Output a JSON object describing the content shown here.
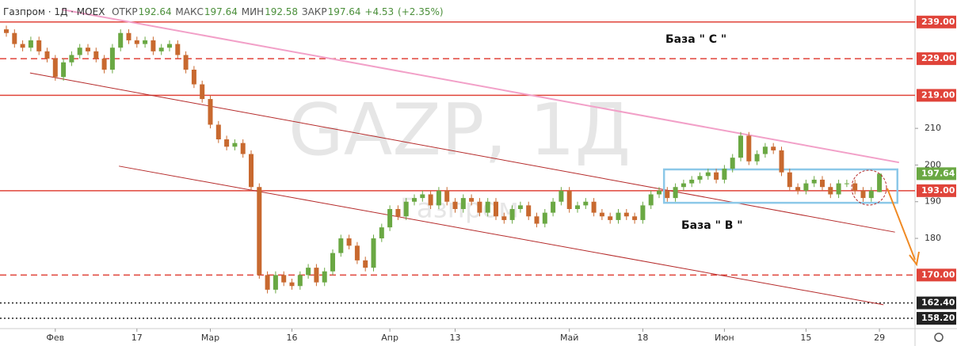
{
  "chart_data": {
    "type": "candlestick",
    "header": {
      "title": "Газпром · 1Д · MOEX",
      "open_label": "ОТКР",
      "open": 192.64,
      "high_label": "МАКС",
      "high": 197.64,
      "low_label": "МИН",
      "low": 192.58,
      "close_label": "ЗАКР",
      "close": 197.64,
      "change": "+4.53",
      "change_pct": "(+2.35%)"
    },
    "watermark": "GAZP, 1Д",
    "watermark_name": "Газпром",
    "annotations": [
      "База  \" С \"",
      "База  \" В \""
    ],
    "categories": [
      null,
      null,
      null,
      null,
      null,
      null,
      "Фев",
      null,
      null,
      null,
      null,
      null,
      null,
      null,
      null,
      null,
      "17",
      null,
      null,
      null,
      null,
      null,
      null,
      null,
      null,
      "Мар",
      null,
      null,
      null,
      null,
      null,
      null,
      null,
      null,
      null,
      "16",
      null,
      null,
      null,
      null,
      null,
      null,
      null,
      null,
      null,
      null,
      null,
      "Апр",
      null,
      null,
      null,
      null,
      null,
      null,
      null,
      "13",
      null,
      null,
      null,
      null,
      null,
      null,
      null,
      null,
      null,
      null,
      null,
      null,
      null,
      "Май",
      null,
      null,
      null,
      null,
      null,
      null,
      null,
      null,
      "18",
      null,
      null,
      null,
      null,
      null,
      null,
      null,
      null,
      null,
      "Июн",
      null,
      null,
      null,
      null,
      null,
      null,
      null,
      null,
      null,
      "15",
      null,
      null,
      null,
      null,
      null,
      null,
      null,
      null,
      "29"
    ],
    "open": [
      237,
      236,
      233,
      232,
      234,
      231,
      229,
      224,
      228,
      230,
      232,
      231,
      229,
      226,
      232,
      236,
      234,
      233,
      234,
      231,
      232,
      233,
      230,
      226,
      222,
      218,
      211,
      207,
      205,
      206,
      203,
      194,
      170,
      166,
      170,
      168,
      167,
      170,
      172,
      168,
      171,
      176,
      180,
      178,
      174,
      172,
      180,
      183,
      188,
      186,
      190,
      191,
      192,
      189,
      193,
      190,
      188,
      191,
      190,
      187,
      190,
      186,
      185,
      188,
      189,
      186,
      184,
      187,
      190,
      193,
      188,
      189,
      190,
      187,
      186,
      185,
      187,
      186,
      185,
      189,
      192,
      193,
      191,
      194,
      195,
      196,
      197,
      198,
      196,
      199,
      202,
      208,
      201,
      203,
      205,
      204,
      198,
      194,
      193,
      195,
      196,
      194,
      192,
      195,
      195,
      193,
      191,
      192.64
    ],
    "high": [
      238,
      237,
      234,
      235,
      235,
      232,
      230,
      229,
      231,
      233,
      233,
      232,
      230,
      233,
      237,
      237,
      235,
      235,
      235,
      233,
      234,
      234,
      231,
      227,
      223,
      219,
      212,
      208,
      207,
      207,
      204,
      195,
      171,
      171,
      171,
      169,
      171,
      173,
      173,
      172,
      177,
      181,
      181,
      179,
      175,
      181,
      184,
      189,
      189,
      191,
      192,
      193,
      193,
      194,
      194,
      191,
      192,
      192,
      191,
      191,
      191,
      187,
      189,
      190,
      190,
      187,
      188,
      191,
      194,
      194,
      190,
      191,
      191,
      188,
      187,
      188,
      188,
      187,
      190,
      193,
      194,
      194,
      195,
      196,
      197,
      198,
      199,
      199,
      200,
      203,
      209,
      209,
      204,
      206,
      206,
      205,
      199,
      195,
      196,
      197,
      197,
      195,
      196,
      196,
      196,
      194,
      194,
      197.64
    ],
    "low": [
      235,
      232,
      231,
      231,
      230,
      228,
      223,
      223,
      227,
      229,
      230,
      228,
      225,
      225,
      231,
      233,
      232,
      232,
      230,
      230,
      231,
      229,
      225,
      221,
      217,
      210,
      206,
      204,
      204,
      202,
      193,
      169,
      165,
      165,
      167,
      166,
      166,
      169,
      167,
      167,
      170,
      175,
      177,
      173,
      171,
      171,
      179,
      182,
      185,
      185,
      189,
      190,
      188,
      188,
      189,
      187,
      187,
      189,
      186,
      186,
      185,
      184,
      184,
      187,
      185,
      183,
      183,
      186,
      189,
      187,
      187,
      188,
      186,
      185,
      184,
      184,
      185,
      184,
      184,
      188,
      191,
      190,
      190,
      193,
      194,
      195,
      196,
      195,
      195,
      198,
      201,
      200,
      200,
      202,
      203,
      197,
      193,
      192,
      192,
      194,
      193,
      191,
      191,
      194,
      192,
      190,
      190,
      192.58
    ],
    "close": [
      236,
      233,
      232,
      234,
      231,
      229,
      224,
      228,
      230,
      232,
      231,
      229,
      226,
      232,
      236,
      234,
      233,
      234,
      231,
      232,
      233,
      230,
      226,
      222,
      218,
      211,
      207,
      205,
      206,
      203,
      194,
      170,
      166,
      170,
      168,
      167,
      170,
      172,
      168,
      171,
      176,
      180,
      178,
      174,
      172,
      180,
      183,
      188,
      186,
      190,
      191,
      192,
      189,
      193,
      190,
      188,
      191,
      190,
      187,
      190,
      186,
      185,
      188,
      189,
      186,
      184,
      187,
      190,
      193,
      188,
      189,
      190,
      187,
      186,
      185,
      187,
      186,
      185,
      189,
      192,
      193,
      191,
      194,
      195,
      196,
      197,
      198,
      196,
      199,
      202,
      208,
      201,
      203,
      205,
      204,
      198,
      194,
      193,
      195,
      196,
      194,
      192,
      195,
      195,
      193,
      191,
      193,
      197.64
    ],
    "up_color": "#6aa843",
    "down_color": "#c8692f",
    "ylim": [
      155.4,
      245
    ],
    "yticks": [
      180,
      190,
      200,
      210
    ],
    "levels": [
      {
        "value": 239,
        "label": "239.00",
        "color": "#e0443a",
        "style": "solid"
      },
      {
        "value": 229,
        "label": "229.00",
        "color": "#e0443a",
        "style": "dashed"
      },
      {
        "value": 219,
        "label": "219.00",
        "color": "#e0443a",
        "style": "solid"
      },
      {
        "value": 193,
        "label": "193.00",
        "color": "#e0443a",
        "style": "solid"
      },
      {
        "value": 170,
        "label": "170.00",
        "color": "#e0443a",
        "style": "dashed"
      },
      {
        "value": 162.4,
        "label": "162.40",
        "color": "#222222",
        "style": "dotted"
      },
      {
        "value": 158.2,
        "label": "158.20",
        "color": "#222222",
        "style": "dotted"
      }
    ],
    "last_label": "197.64",
    "last_color": "#6aa843",
    "trendlines": [
      {
        "x": [
          6.8,
          109.4
        ],
        "y": [
          242.4,
          200.7
        ],
        "color": "#f2a0c8",
        "width": 2
      },
      {
        "x": [
          2.9,
          108.9
        ],
        "y": [
          225.1,
          181.7
        ],
        "color": "#b52a2a",
        "width": 1
      },
      {
        "x": [
          13.8,
          107.5
        ],
        "y": [
          199.7,
          161.9
        ],
        "color": "#b52a2a",
        "width": 1
      }
    ],
    "box": {
      "x": [
        80.6,
        109.2
      ],
      "y": [
        198.8,
        189.7
      ],
      "color": "#8cc8e8"
    }
  }
}
